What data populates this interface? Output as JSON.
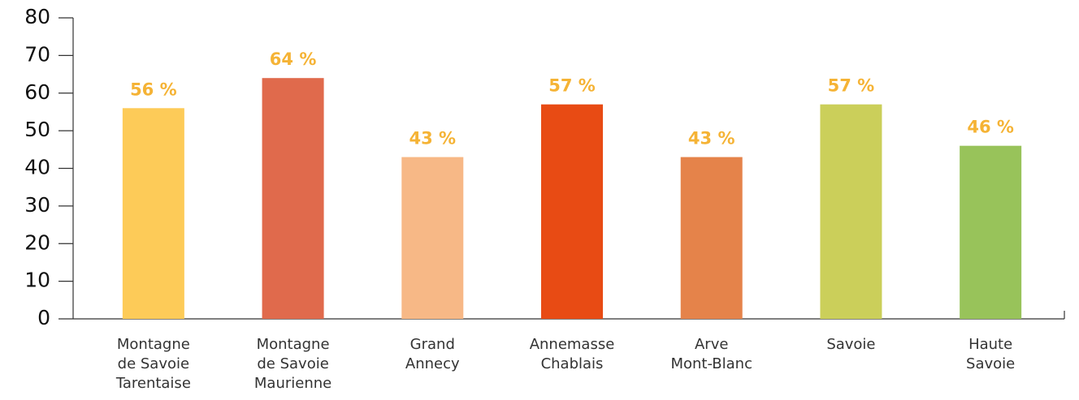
{
  "chart_data": {
    "type": "bar",
    "categories": [
      [
        "Montagne",
        "de Savoie",
        "Tarentaise"
      ],
      [
        "Montagne",
        "de Savoie",
        "Maurienne"
      ],
      [
        "Grand",
        "Annecy"
      ],
      [
        "Annemasse",
        "Chablais"
      ],
      [
        "Arve",
        "Mont-Blanc"
      ],
      [
        "Savoie"
      ],
      [
        "Haute",
        "Savoie"
      ]
    ],
    "values": [
      56,
      64,
      43,
      57,
      43,
      57,
      46
    ],
    "value_labels": [
      "56 %",
      "64 %",
      "43 %",
      "57 %",
      "43 %",
      "57 %",
      "46 %"
    ],
    "colors": [
      "#fdcb58",
      "#e06a4c",
      "#f7b886",
      "#e84b14",
      "#e5834a",
      "#cbcf5a",
      "#98c35a"
    ],
    "ylim": [
      0,
      80
    ],
    "yticks": [
      0,
      10,
      20,
      30,
      40,
      50,
      60,
      70,
      80
    ]
  }
}
